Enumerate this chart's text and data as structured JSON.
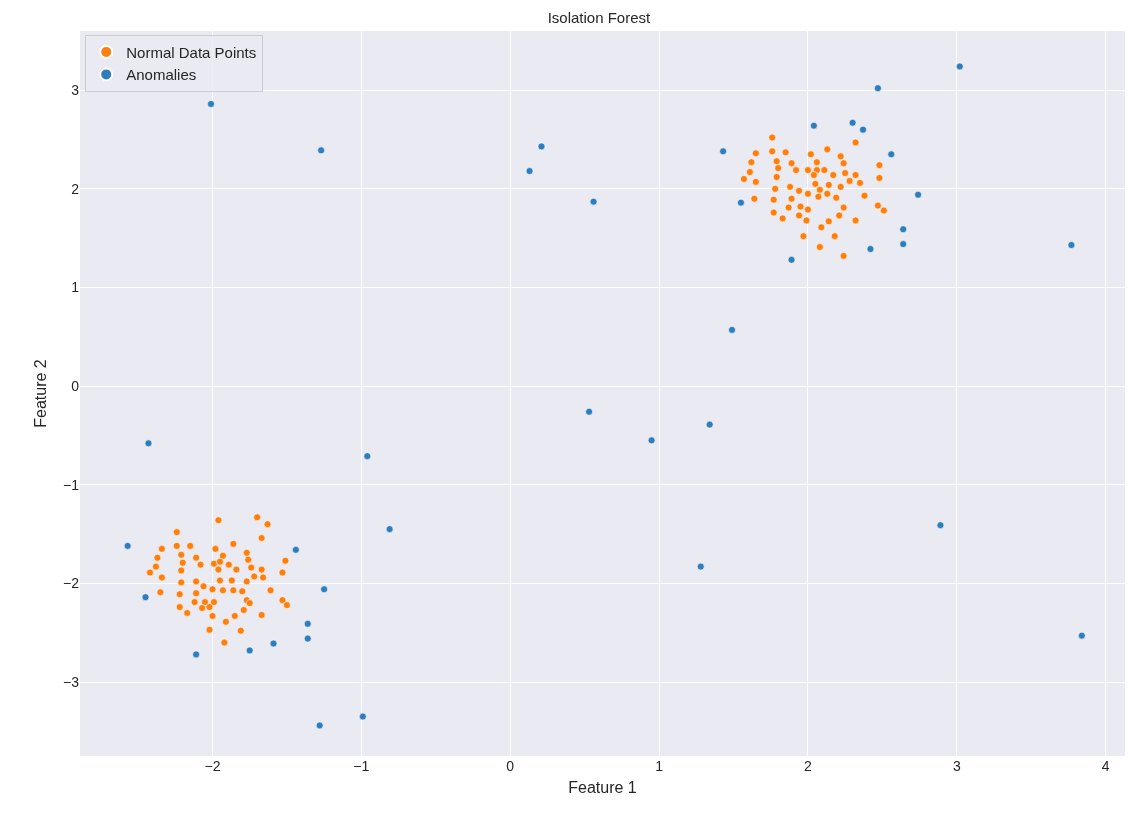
{
  "chart_data": {
    "type": "scatter",
    "title": "Isolation Forest",
    "xlabel": "Feature 1",
    "ylabel": "Feature 2",
    "xlim": [
      -2.89,
      4.13
    ],
    "ylim": [
      -3.75,
      3.6
    ],
    "xticks": [
      {
        "value": -2,
        "label": "−2"
      },
      {
        "value": -1,
        "label": "−1"
      },
      0,
      1,
      2,
      3,
      4
    ],
    "yticks": [
      {
        "value": -3,
        "label": "−3"
      },
      {
        "value": -2,
        "label": "−2"
      },
      {
        "value": -1,
        "label": "−1"
      },
      0,
      1,
      2,
      3
    ],
    "grid": true,
    "legend": "top left",
    "marker": "circle",
    "series": [
      {
        "name": "Normal Data Points",
        "color": "#ff7f0e",
        "x": [
          -1.96,
          -1.7,
          -1.63,
          -1.67,
          -2.24,
          -2.24,
          -2.15,
          -2.34,
          -1.86,
          -1.98,
          -2.37,
          -2.21,
          -2.11,
          -1.93,
          -1.77,
          -1.76,
          -1.51,
          -2.2,
          -2.08,
          -1.99,
          -1.95,
          -1.89,
          -2.42,
          -2.38,
          -2.34,
          -2.21,
          -1.96,
          -1.84,
          -1.74,
          -1.67,
          -1.53,
          -1.72,
          -1.66,
          -2.21,
          -2.11,
          -2.06,
          -1.95,
          -1.87,
          -1.77,
          -1.61,
          -2.35,
          -2.22,
          -2.11,
          -2.0,
          -1.93,
          -1.86,
          -1.8,
          -2.12,
          -2.05,
          -1.99,
          -1.77,
          -1.75,
          -1.53,
          -1.5,
          -2.22,
          -2.17,
          -2.07,
          -2.02,
          -1.79,
          -2.0,
          -1.85,
          -1.67,
          -1.91,
          -2.02,
          -1.81,
          -1.92,
          1.76,
          2.32,
          1.65,
          1.76,
          1.85,
          2.02,
          2.13,
          2.22,
          1.62,
          1.79,
          1.89,
          2.06,
          2.24,
          2.48,
          1.61,
          1.8,
          1.92,
          2.0,
          2.06,
          2.11,
          2.25,
          2.32,
          1.57,
          1.65,
          1.79,
          2.04,
          2.17,
          2.28,
          2.35,
          2.48,
          1.78,
          1.88,
          1.94,
          2.05,
          2.08,
          2.14,
          2.22,
          1.64,
          1.77,
          1.89,
          2.0,
          2.07,
          2.13,
          2.19,
          2.38,
          1.87,
          1.95,
          2.0,
          2.24,
          2.47,
          2.51,
          1.77,
          1.83,
          1.94,
          1.99,
          2.21,
          2.32,
          2.09,
          2.14,
          1.97,
          2.18,
          2.08,
          2.24
        ],
        "values": [
          -1.36,
          -1.33,
          -1.4,
          -1.54,
          -1.48,
          -1.62,
          -1.62,
          -1.65,
          -1.6,
          -1.65,
          -1.74,
          -1.71,
          -1.74,
          -1.72,
          -1.69,
          -1.76,
          -1.77,
          -1.79,
          -1.81,
          -1.8,
          -1.78,
          -1.81,
          -1.89,
          -1.83,
          -1.94,
          -1.87,
          -1.86,
          -1.86,
          -1.84,
          -1.86,
          -1.89,
          -1.93,
          -1.94,
          -1.99,
          -1.98,
          -2.03,
          -1.97,
          -1.97,
          -1.98,
          -2.07,
          -2.09,
          -2.11,
          -2.1,
          -2.06,
          -2.07,
          -2.07,
          -2.08,
          -2.19,
          -2.19,
          -2.19,
          -2.17,
          -2.2,
          -2.17,
          -2.22,
          -2.24,
          -2.3,
          -2.25,
          -2.24,
          -2.27,
          -2.33,
          -2.33,
          -2.32,
          -2.39,
          -2.47,
          -2.48,
          -2.6,
          2.52,
          2.47,
          2.36,
          2.38,
          2.37,
          2.35,
          2.4,
          2.33,
          2.27,
          2.28,
          2.26,
          2.27,
          2.26,
          2.24,
          2.17,
          2.21,
          2.19,
          2.19,
          2.19,
          2.19,
          2.16,
          2.14,
          2.1,
          2.07,
          2.12,
          2.14,
          2.14,
          2.08,
          2.06,
          2.11,
          2.0,
          2.02,
          1.98,
          2.05,
          1.99,
          2.04,
          2.02,
          1.9,
          1.89,
          1.9,
          1.95,
          1.92,
          1.95,
          1.91,
          1.93,
          1.81,
          1.82,
          1.79,
          1.81,
          1.83,
          1.78,
          1.76,
          1.7,
          1.73,
          1.68,
          1.73,
          1.68,
          1.61,
          1.67,
          1.52,
          1.52,
          1.41,
          1.32
        ]
      },
      {
        "name": "Anomalies",
        "color": "#2e7ebc",
        "x": [
          -2.57,
          -1.44,
          -2.45,
          -1.25,
          -1.36,
          -1.36,
          -1.59,
          -1.75,
          -2.11,
          1.43,
          2.04,
          2.3,
          2.37,
          2.56,
          2.74,
          1.55,
          2.64,
          2.64,
          2.42,
          1.89,
          -2.01,
          -1.27,
          -2.43,
          -0.96,
          -0.81,
          -1.28,
          -0.99,
          0.21,
          0.13,
          0.56,
          0.53,
          0.95,
          1.34,
          1.28,
          1.49,
          2.47,
          3.02,
          3.77,
          2.89,
          3.84
        ],
        "values": [
          -1.62,
          -1.66,
          -2.14,
          -2.06,
          -2.41,
          -2.56,
          -2.61,
          -2.68,
          -2.72,
          2.38,
          2.64,
          2.67,
          2.6,
          2.35,
          1.94,
          1.86,
          1.59,
          1.44,
          1.39,
          1.28,
          2.86,
          2.39,
          -0.58,
          -0.71,
          -1.45,
          -3.44,
          -3.35,
          2.43,
          2.18,
          1.87,
          -0.26,
          -0.55,
          -0.39,
          -1.83,
          0.57,
          3.02,
          3.24,
          1.43,
          -1.41,
          -2.53
        ]
      }
    ]
  }
}
